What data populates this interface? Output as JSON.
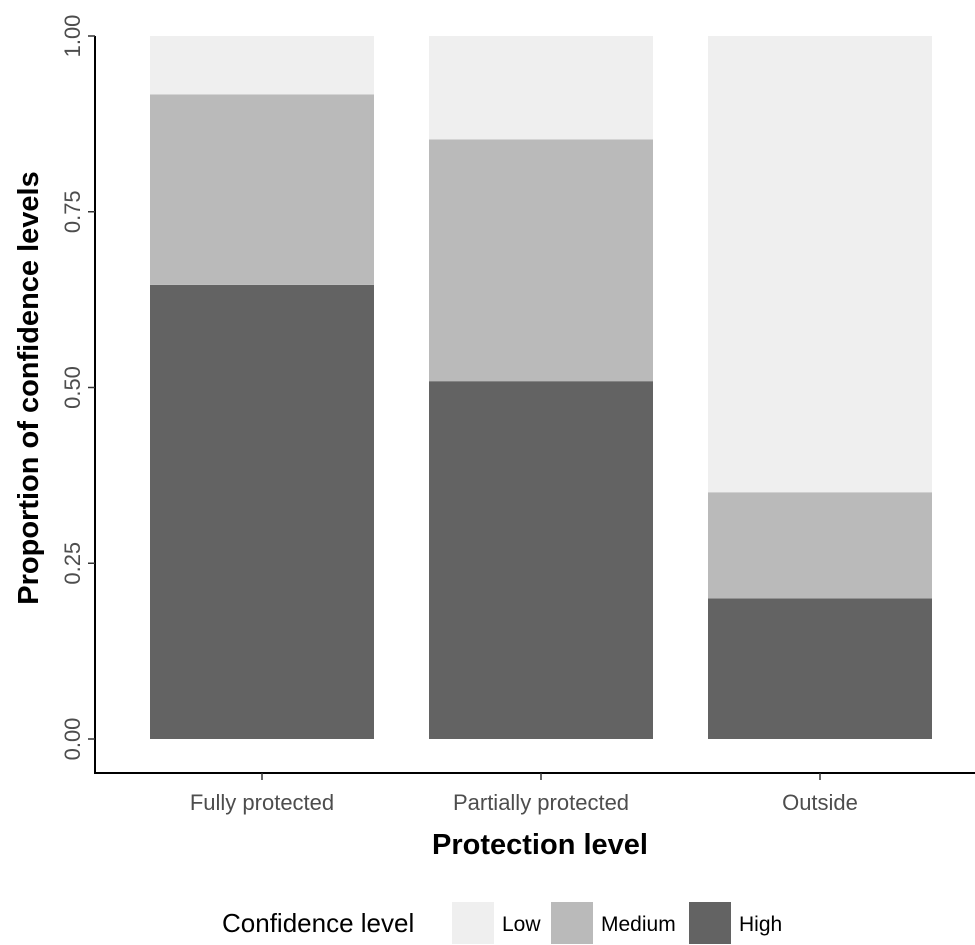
{
  "chart_data": {
    "type": "bar",
    "stacked": true,
    "categories": [
      "Fully protected",
      "Partially protected",
      "Outside"
    ],
    "series": [
      {
        "name": "High",
        "values": [
          0.646,
          0.509,
          0.2
        ],
        "color": "#636363"
      },
      {
        "name": "Medium",
        "values": [
          0.271,
          0.344,
          0.151
        ],
        "color": "#bababa"
      },
      {
        "name": "Low",
        "values": [
          0.083,
          0.147,
          0.649
        ],
        "color": "#efefef"
      }
    ],
    "xlabel": "Protection level",
    "ylabel": "Proportion of confidence levels",
    "ylim": [
      0,
      1
    ],
    "yticks": [
      "0.00",
      "0.25",
      "0.50",
      "0.75",
      "1.00"
    ],
    "legend": {
      "title": "Confidence level",
      "placement": "bottom",
      "entries": [
        "Low",
        "Medium",
        "High"
      ]
    },
    "grid": false
  }
}
